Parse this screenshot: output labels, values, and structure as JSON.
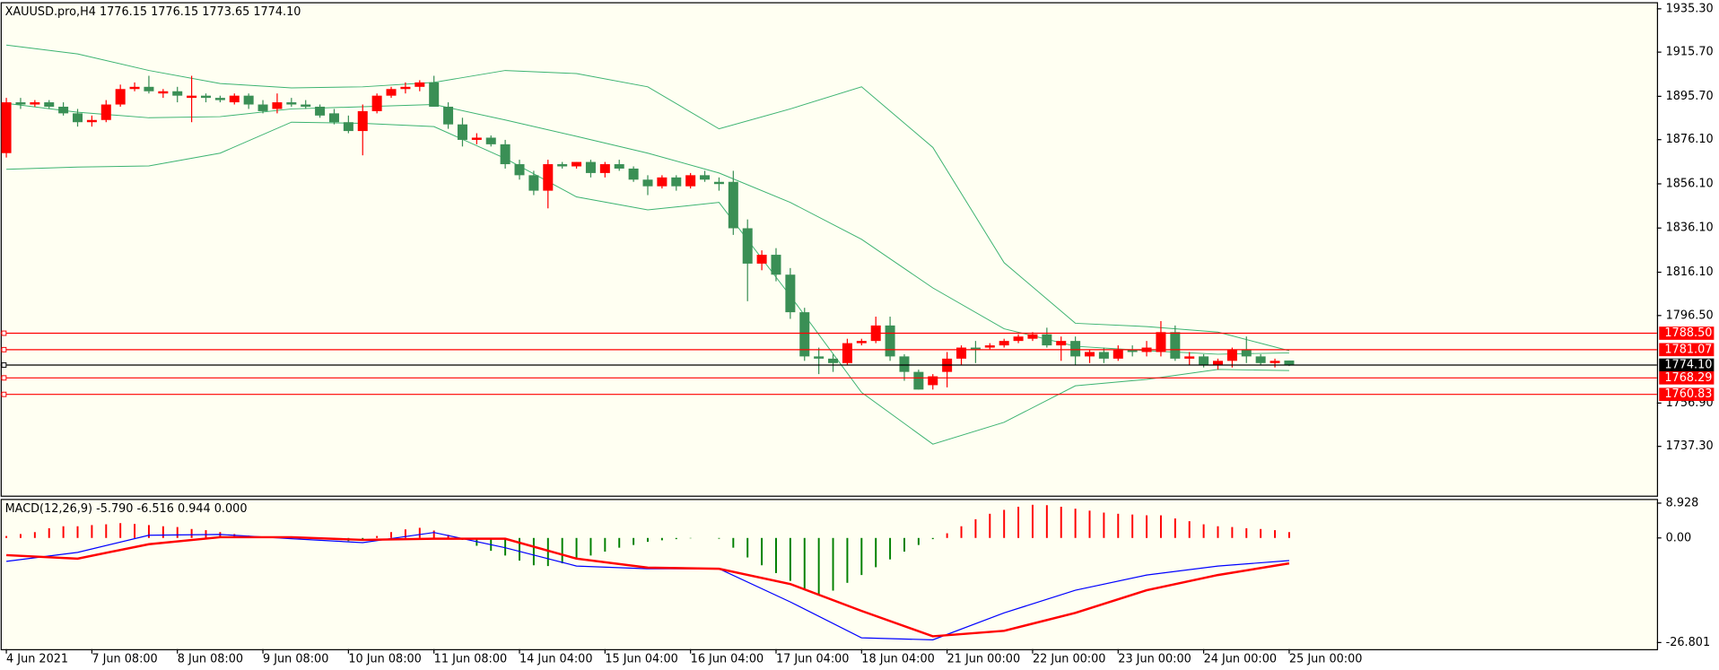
{
  "chart_data": [
    {
      "type": "candlestick",
      "title": "XAUUSD.pro,H4  1776.15 1776.15 1773.65 1774.10",
      "up_color": "#ff0000",
      "down_color": "#3a8f55",
      "xlim": [
        -0.4,
        115.8
      ],
      "ylim": [
        1715,
        1938.3
      ],
      "yticks": [
        {
          "value": 1935.3,
          "label": "1935.30"
        },
        {
          "value": 1915.7,
          "label": "1915.70"
        },
        {
          "value": 1895.7,
          "label": "1895.70"
        },
        {
          "value": 1876.1,
          "label": "1876.10"
        },
        {
          "value": 1856.1,
          "label": "1856.10"
        },
        {
          "value": 1836.1,
          "label": "1836.10"
        },
        {
          "value": 1816.1,
          "label": "1816.10"
        },
        {
          "value": 1796.5,
          "label": "1796.50"
        },
        {
          "value": 1756.9,
          "label": "1756.90"
        },
        {
          "value": 1737.3,
          "label": "1737.30"
        }
      ],
      "candles": [
        [
          1870,
          1895,
          1868,
          1893
        ],
        [
          1893,
          1895,
          1890,
          1892
        ],
        [
          1892,
          1894,
          1891,
          1893
        ],
        [
          1893,
          1894,
          1890,
          1891
        ],
        [
          1891,
          1893,
          1887,
          1888
        ],
        [
          1888,
          1890,
          1882,
          1884
        ],
        [
          1884,
          1887,
          1882,
          1885
        ],
        [
          1885,
          1894,
          1884,
          1892
        ],
        [
          1892,
          1901,
          1891,
          1899
        ],
        [
          1899,
          1902,
          1898,
          1900
        ],
        [
          1900,
          1905,
          1897,
          1898
        ],
        [
          1897,
          1899,
          1895,
          1898
        ],
        [
          1898,
          1900,
          1893,
          1896
        ],
        [
          1895,
          1905,
          1884,
          1896
        ],
        [
          1896,
          1897,
          1893,
          1895
        ],
        [
          1895,
          1896,
          1893,
          1894
        ],
        [
          1893,
          1897,
          1892,
          1896
        ],
        [
          1896,
          1897,
          1890,
          1892
        ],
        [
          1892,
          1894,
          1888,
          1889
        ],
        [
          1890,
          1897,
          1888,
          1893
        ],
        [
          1893,
          1895,
          1891,
          1892
        ],
        [
          1892,
          1894,
          1890,
          1891
        ],
        [
          1891,
          1892,
          1886,
          1887
        ],
        [
          1888,
          1890,
          1883,
          1884
        ],
        [
          1884,
          1887,
          1879,
          1880
        ],
        [
          1880,
          1892,
          1869,
          1889
        ],
        [
          1889,
          1897,
          1888,
          1896
        ],
        [
          1896,
          1900,
          1895,
          1899
        ],
        [
          1899,
          1902,
          1897,
          1900
        ],
        [
          1900,
          1903,
          1898,
          1902
        ],
        [
          1902,
          1905,
          1891,
          1891
        ],
        [
          1891,
          1893,
          1881,
          1883
        ],
        [
          1883,
          1886,
          1873,
          1876
        ],
        [
          1876,
          1879,
          1874,
          1877
        ],
        [
          1877,
          1878,
          1873,
          1874
        ],
        [
          1874,
          1876,
          1863,
          1865
        ],
        [
          1865,
          1867,
          1858,
          1860
        ],
        [
          1860,
          1862,
          1851,
          1853
        ],
        [
          1853,
          1867,
          1845,
          1865
        ],
        [
          1865,
          1866,
          1863,
          1864
        ],
        [
          1864,
          1866,
          1863,
          1866
        ],
        [
          1866,
          1867,
          1859,
          1861
        ],
        [
          1861,
          1866,
          1859,
          1865
        ],
        [
          1865,
          1867,
          1862,
          1863
        ],
        [
          1863,
          1864,
          1857,
          1858
        ],
        [
          1858,
          1860,
          1851,
          1855
        ],
        [
          1855,
          1860,
          1854,
          1859
        ],
        [
          1859,
          1860,
          1853,
          1855
        ],
        [
          1855,
          1861,
          1854,
          1860
        ],
        [
          1860,
          1862,
          1857,
          1858
        ],
        [
          1857,
          1859,
          1853,
          1856
        ],
        [
          1857,
          1862,
          1833,
          1836
        ],
        [
          1836,
          1840,
          1803,
          1820
        ],
        [
          1820,
          1826,
          1817,
          1824
        ],
        [
          1824,
          1827,
          1812,
          1815
        ],
        [
          1815,
          1818,
          1795,
          1798
        ],
        [
          1798,
          1800,
          1776,
          1778
        ],
        [
          1778,
          1782,
          1770,
          1777
        ],
        [
          1777,
          1779,
          1771,
          1775
        ],
        [
          1775,
          1786,
          1774,
          1784
        ],
        [
          1784,
          1786,
          1783,
          1785
        ],
        [
          1785,
          1796,
          1784,
          1792
        ],
        [
          1792,
          1796,
          1776,
          1778
        ],
        [
          1778,
          1779,
          1767,
          1771
        ],
        [
          1771,
          1772,
          1763,
          1763
        ],
        [
          1765,
          1770,
          1763,
          1769
        ],
        [
          1771,
          1780,
          1764,
          1777
        ],
        [
          1777,
          1783,
          1774,
          1782
        ],
        [
          1782,
          1785,
          1775,
          1781
        ],
        [
          1782,
          1784,
          1781,
          1783
        ],
        [
          1783,
          1786,
          1782,
          1785
        ],
        [
          1785,
          1788,
          1784,
          1787
        ],
        [
          1786,
          1789,
          1785,
          1788
        ],
        [
          1788,
          1791,
          1782,
          1783
        ],
        [
          1783,
          1787,
          1776,
          1785
        ],
        [
          1785,
          1787,
          1774,
          1778
        ],
        [
          1778,
          1781,
          1775,
          1780
        ],
        [
          1780,
          1782,
          1775,
          1777
        ],
        [
          1777,
          1783,
          1776,
          1781
        ],
        [
          1781,
          1783,
          1778,
          1780
        ],
        [
          1780,
          1785,
          1778,
          1782
        ],
        [
          1780,
          1794,
          1778,
          1789
        ],
        [
          1789,
          1792,
          1776,
          1777
        ],
        [
          1777,
          1780,
          1774,
          1778
        ],
        [
          1778,
          1779,
          1773,
          1774
        ],
        [
          1774,
          1777,
          1772,
          1776
        ],
        [
          1776,
          1782,
          1773,
          1781
        ],
        [
          1781,
          1787,
          1775,
          1778
        ],
        [
          1778,
          1779,
          1774,
          1775
        ],
        [
          1775,
          1777,
          1773,
          1776
        ],
        [
          1776.15,
          1776.15,
          1773.65,
          1774.1
        ]
      ],
      "bands": {
        "x": [
          0,
          5,
          10,
          15,
          20,
          25,
          30,
          35,
          40,
          45,
          50,
          55,
          60,
          65,
          70,
          75,
          80,
          85,
          90
        ],
        "series": [
          {
            "color": "#3cb371",
            "values": [
              1918.9,
              1914.9,
              1907.4,
              1901.5,
              1899.5,
              1900,
              1902,
              1907.4,
              1906,
              1900,
              1881,
              1890,
              1900,
              1872.6,
              1820.4,
              1793,
              1791.5,
              1789,
              1780.6
            ]
          },
          {
            "color": "#3cb371",
            "values": [
              1892.5,
              1888.5,
              1886,
              1886.5,
              1890,
              1891,
              1892,
              1885,
              1877.6,
              1870,
              1861,
              1847.7,
              1831,
              1809,
              1790.5,
              1782.6,
              1780.6,
              1779,
              1779.6
            ]
          },
          {
            "color": "#3cb371",
            "values": [
              1862.7,
              1863.7,
              1864.2,
              1870,
              1884,
              1883.5,
              1882,
              1867.6,
              1850.2,
              1844.3,
              1847.7,
              1805.4,
              1761.7,
              1738.3,
              1748.2,
              1764.7,
              1767.6,
              1772.1,
              1771.6
            ]
          }
        ]
      },
      "levels": [
        {
          "value": 1788.5,
          "label": "1788.50",
          "color": "#ff0000"
        },
        {
          "value": 1781.07,
          "label": "1781.07",
          "color": "#ff0000"
        },
        {
          "value": 1774.1,
          "label": "1774.10",
          "color": "#000000"
        },
        {
          "value": 1768.29,
          "label": "1768.29",
          "color": "#ff0000"
        },
        {
          "value": 1760.83,
          "label": "1760.83",
          "color": "#ff0000"
        }
      ]
    },
    {
      "type": "macd",
      "title": "MACD(12,26,9) -5.790 -6.516 0.944 0.000",
      "xlim": [
        -0.4,
        115.8
      ],
      "ylim": [
        -28.5,
        10
      ],
      "yticks": [
        {
          "value": 8.928,
          "label": "8.928"
        },
        {
          "value": 0,
          "label": "0.00"
        },
        {
          "value": -26.801,
          "label": "-26.801"
        }
      ],
      "xticks": [
        {
          "value": 0,
          "label": "4 Jun 2021"
        },
        {
          "value": 6,
          "label": "7 Jun 08:00"
        },
        {
          "value": 12,
          "label": "8 Jun 08:00"
        },
        {
          "value": 18,
          "label": "9 Jun 08:00"
        },
        {
          "value": 24,
          "label": "10 Jun 08:00"
        },
        {
          "value": 30,
          "label": "11 Jun 08:00"
        },
        {
          "value": 36,
          "label": "14 Jun 04:00"
        },
        {
          "value": 42,
          "label": "15 Jun 04:00"
        },
        {
          "value": 48,
          "label": "16 Jun 04:00"
        },
        {
          "value": 54,
          "label": "17 Jun 04:00"
        },
        {
          "value": 60,
          "label": "18 Jun 04:00"
        },
        {
          "value": 66,
          "label": "21 Jun 00:00"
        },
        {
          "value": 72,
          "label": "22 Jun 00:00"
        },
        {
          "value": 78,
          "label": "23 Jun 00:00"
        },
        {
          "value": 84,
          "label": "24 Jun 00:00"
        },
        {
          "value": 90,
          "label": "25 Jun 00:00"
        }
      ],
      "histogram": {
        "pos_color": "#ff0000",
        "neg_color": "#008000",
        "values": [
          0.5,
          1,
          1.5,
          2.5,
          3,
          3,
          3.3,
          3.5,
          3.8,
          3.6,
          3.3,
          3,
          2.8,
          2.3,
          2,
          1.5,
          1,
          0.6,
          0.3,
          0.3,
          0.2,
          0.1,
          -0.2,
          -0.5,
          -0.8,
          -0.3,
          0.5,
          1.5,
          2.2,
          2.6,
          1.9,
          0.8,
          -0.5,
          -2,
          -3.3,
          -4.5,
          -5.8,
          -7,
          -7.2,
          -6.5,
          -5.5,
          -4.5,
          -3.5,
          -2.5,
          -1.8,
          -1,
          -0.6,
          -0.3,
          -0.1,
          0,
          -0.2,
          -2.5,
          -5,
          -7,
          -9,
          -11,
          -13,
          -14.5,
          -13.5,
          -11.5,
          -9.5,
          -7.5,
          -5.5,
          -3.5,
          -1.8,
          -0.3,
          1.2,
          3,
          4.8,
          6.2,
          7.2,
          8,
          8.5,
          8.4,
          8,
          7.5,
          7,
          6.5,
          6.2,
          6,
          5.8,
          5.8,
          5,
          4.3,
          3.5,
          3,
          2.8,
          2.5,
          2.3,
          2,
          1.5
        ]
      },
      "lines": {
        "x": [
          0,
          5,
          10,
          15,
          20,
          25,
          30,
          35,
          40,
          45,
          50,
          55,
          60,
          65,
          70,
          75,
          80,
          85,
          90
        ],
        "series": [
          {
            "color": "#0000ff",
            "width": 1,
            "values": [
              -6,
              -3.7,
              0.7,
              0.9,
              -0.2,
              -1.2,
              1.4,
              -2.5,
              -7.2,
              -7.9,
              -7.9,
              -16.4,
              -25.6,
              -26.1,
              -19.2,
              -13.4,
              -9.5,
              -7.2,
              -5.79
            ]
          },
          {
            "color": "#ff0000",
            "width": 2,
            "values": [
              -4.4,
              -5.3,
              -1.6,
              0.2,
              0.2,
              -0.5,
              -0.2,
              -0.2,
              -5.3,
              -7.6,
              -7.9,
              -11.8,
              -18.7,
              -25.2,
              -23.8,
              -19.2,
              -13.4,
              -9.5,
              -6.516
            ]
          }
        ]
      }
    }
  ]
}
